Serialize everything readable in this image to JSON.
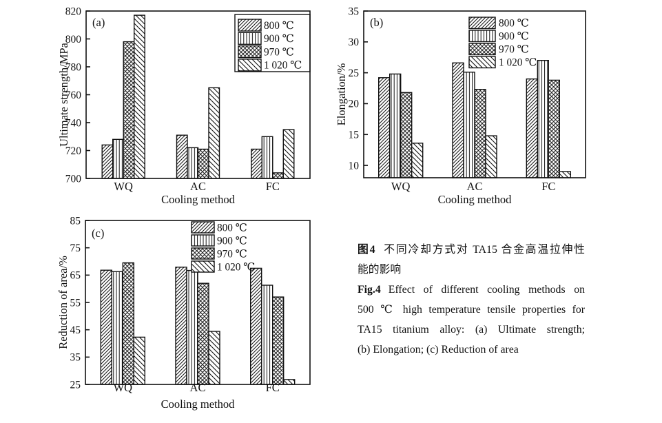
{
  "page": {
    "background": "#ffffff",
    "ink": "#111111"
  },
  "caption": {
    "lines": [
      {
        "bold": "图4",
        "text": "不同冷却方式对 TA15 合金高温拉伸性"
      },
      {
        "bold": "",
        "text": "能的影响"
      },
      {
        "bold": "Fig.4",
        "text": "Effect of different cooling methods on"
      },
      {
        "bold": "",
        "text": "500 ℃ high temperature tensile properties for"
      },
      {
        "bold": "",
        "text": "TA15 titanium alloy: (a) Ultimate strength;"
      },
      {
        "bold": "",
        "text": "(b) Elongation; (c) Reduction of area"
      }
    ]
  },
  "chart_data": [
    {
      "id": "a",
      "type": "bar",
      "panel_label": "(a)",
      "xlabel": "Cooling method",
      "ylabel": "Ultimate strength/MPa",
      "categories": [
        "WQ",
        "AC",
        "FC"
      ],
      "ymin": 700,
      "ymax": 820,
      "yticks": [
        700,
        720,
        740,
        760,
        780,
        800,
        820
      ],
      "grid": false,
      "legend_position": "top-right",
      "legend_box": true,
      "series": [
        {
          "name": "800 ℃",
          "hatch": "forward-diagonal",
          "values": [
            724,
            731,
            721
          ]
        },
        {
          "name": "900 ℃",
          "hatch": "vertical",
          "values": [
            728,
            722,
            730
          ]
        },
        {
          "name": "970 ℃",
          "hatch": "crosshatch",
          "values": [
            798,
            721,
            704
          ]
        },
        {
          "name": "1 020 ℃",
          "hatch": "back-diagonal",
          "values": [
            817,
            765,
            735
          ]
        }
      ]
    },
    {
      "id": "b",
      "type": "bar",
      "panel_label": "(b)",
      "xlabel": "Cooling method",
      "ylabel": "Elongation/%",
      "categories": [
        "WQ",
        "AC",
        "FC"
      ],
      "ymin": 8,
      "ymax": 35,
      "yticks": [
        10,
        15,
        20,
        25,
        30,
        35
      ],
      "grid": false,
      "legend_position": "top-center",
      "legend_box": false,
      "series": [
        {
          "name": "800 ℃",
          "hatch": "forward-diagonal",
          "values": [
            24.2,
            26.6,
            24.0
          ]
        },
        {
          "name": "900 ℃",
          "hatch": "vertical",
          "values": [
            24.8,
            25.1,
            27.0
          ]
        },
        {
          "name": "970 ℃",
          "hatch": "crosshatch",
          "values": [
            21.8,
            22.3,
            23.8
          ]
        },
        {
          "name": "1 020 ℃",
          "hatch": "back-diagonal",
          "values": [
            13.6,
            14.8,
            9.0
          ]
        }
      ]
    },
    {
      "id": "c",
      "type": "bar",
      "panel_label": "(c)",
      "xlabel": "Cooling method",
      "ylabel": "Reduction of area/%",
      "categories": [
        "WQ",
        "AC",
        "FC"
      ],
      "ymin": 25,
      "ymax": 85,
      "yticks": [
        25,
        35,
        45,
        55,
        65,
        75,
        85
      ],
      "grid": false,
      "legend_position": "top-center",
      "legend_box": false,
      "series": [
        {
          "name": "800 ℃",
          "hatch": "forward-diagonal",
          "values": [
            66.8,
            67.9,
            67.5
          ]
        },
        {
          "name": "900 ℃",
          "hatch": "vertical",
          "values": [
            66.3,
            66.7,
            61.3
          ]
        },
        {
          "name": "970 ℃",
          "hatch": "crosshatch",
          "values": [
            69.5,
            62.0,
            57.0
          ]
        },
        {
          "name": "1 020 ℃",
          "hatch": "back-diagonal",
          "values": [
            42.3,
            44.4,
            26.8
          ]
        }
      ]
    }
  ]
}
